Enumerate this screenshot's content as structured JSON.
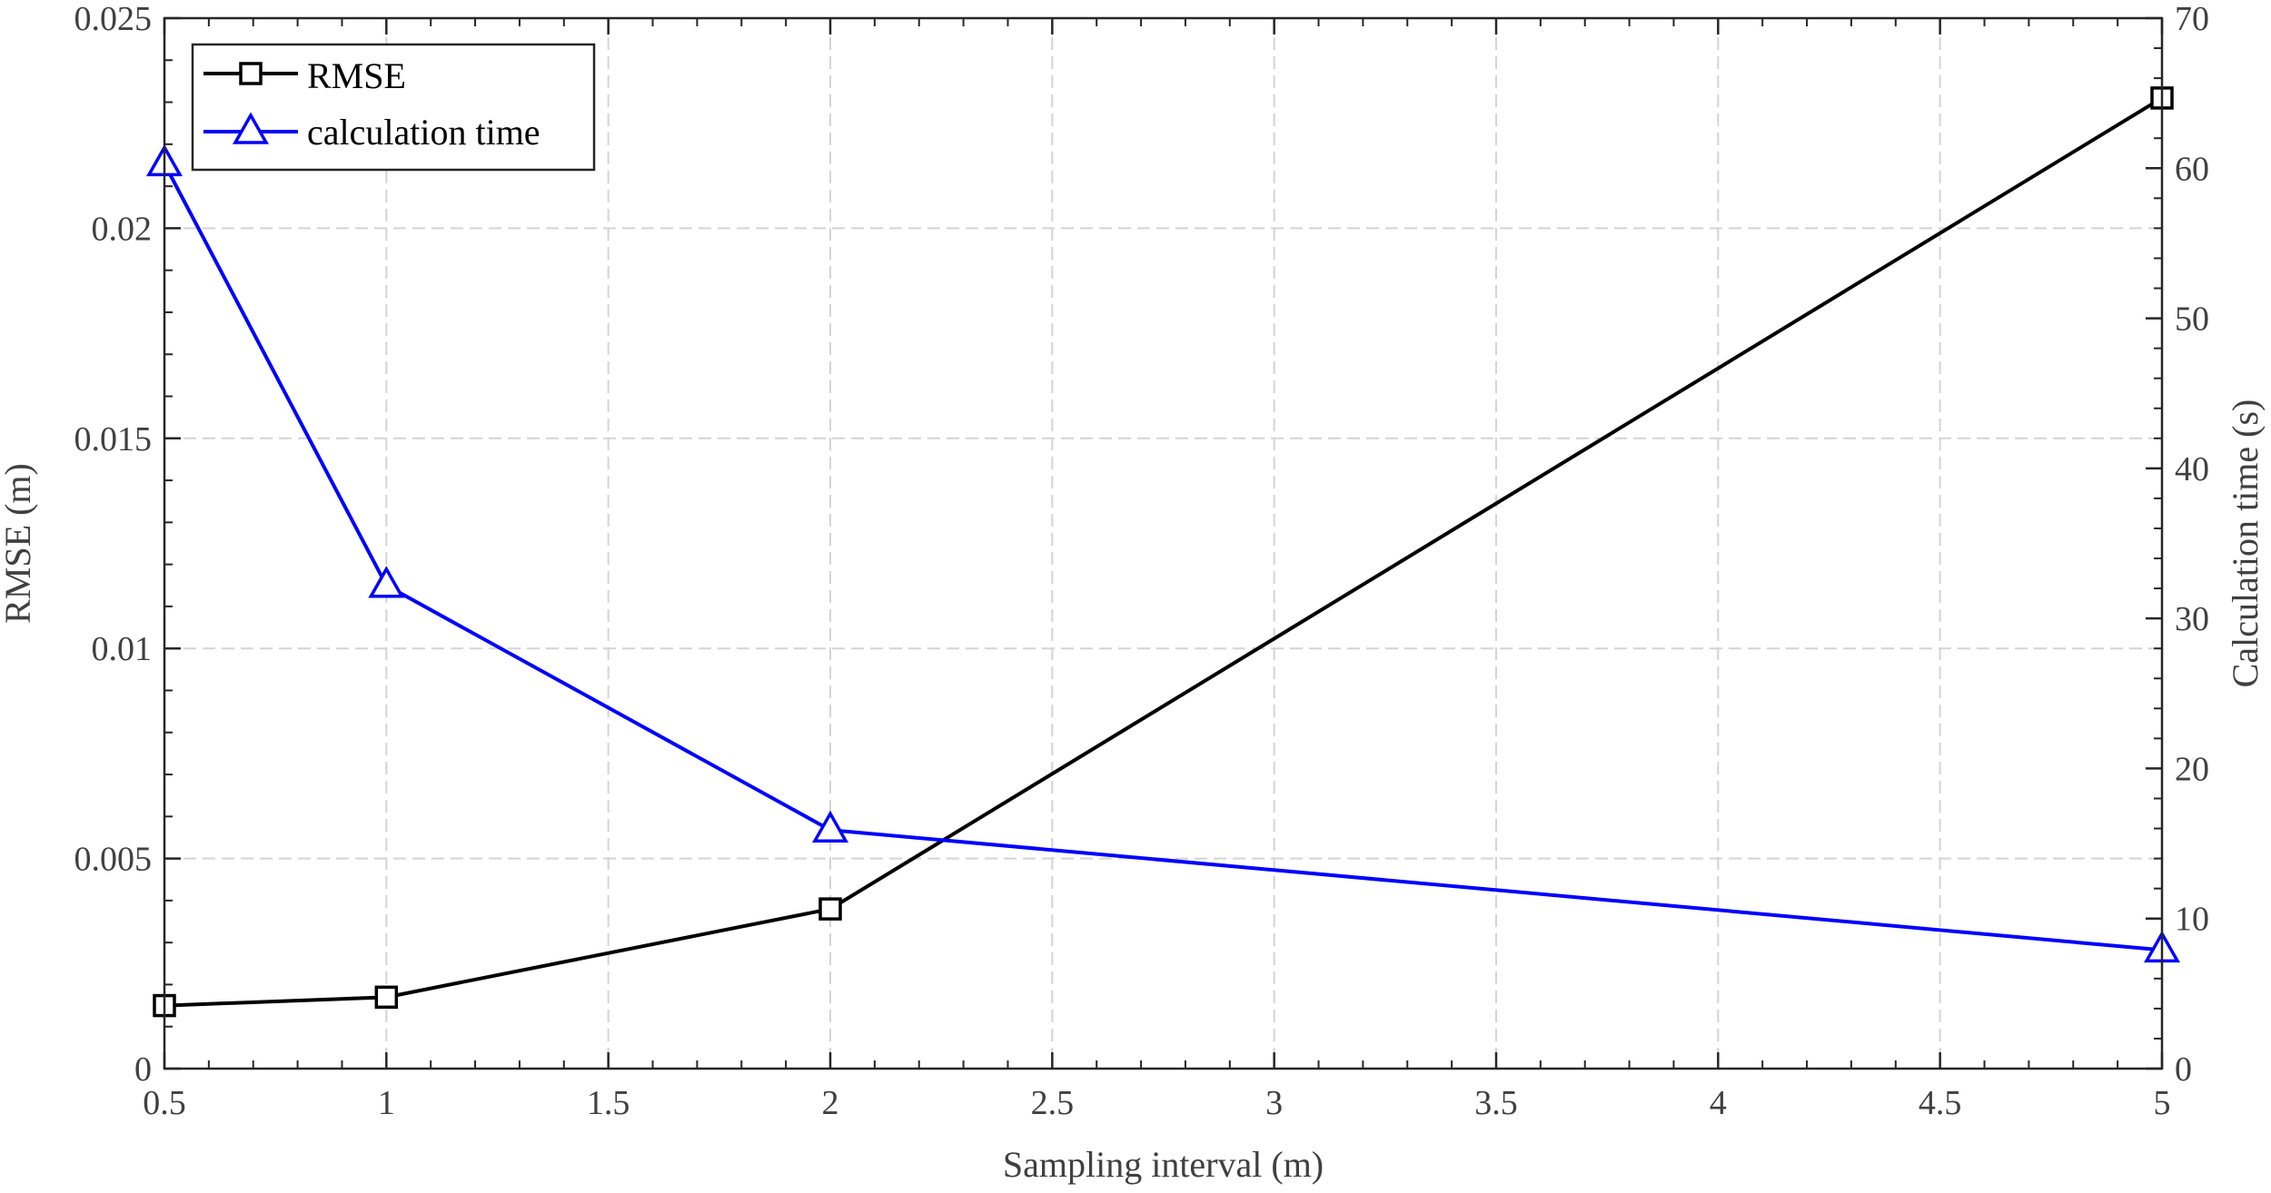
{
  "chart_data": {
    "type": "line",
    "xlabel": "Sampling interval (m)",
    "ylabel_left": "RMSE (m)",
    "ylabel_right": "Calculation time (s)",
    "x": [
      0.5,
      1,
      2,
      5
    ],
    "xlim": [
      0.5,
      5
    ],
    "xticks": [
      "0.5",
      "1",
      "1.5",
      "2",
      "2.5",
      "3",
      "3.5",
      "4",
      "4.5",
      "5"
    ],
    "ylim_left": [
      0,
      0.025
    ],
    "yticks_left": [
      "0",
      "0.005",
      "0.01",
      "0.015",
      "0.02",
      "0.025"
    ],
    "ylim_right": [
      0,
      70
    ],
    "yticks_right": [
      "0",
      "10",
      "20",
      "30",
      "40",
      "50",
      "60",
      "70"
    ],
    "grid": true,
    "legend_position": "top-left",
    "series": [
      {
        "name": "RMSE",
        "axis": "left",
        "color": "#000000",
        "marker": "square",
        "values": [
          0.0015,
          0.0017,
          0.0038,
          0.0231
        ]
      },
      {
        "name": "calculation time",
        "axis": "right",
        "color": "#0000ff",
        "marker": "triangle",
        "values": [
          60.3,
          32.2,
          15.9,
          7.9
        ]
      }
    ]
  }
}
